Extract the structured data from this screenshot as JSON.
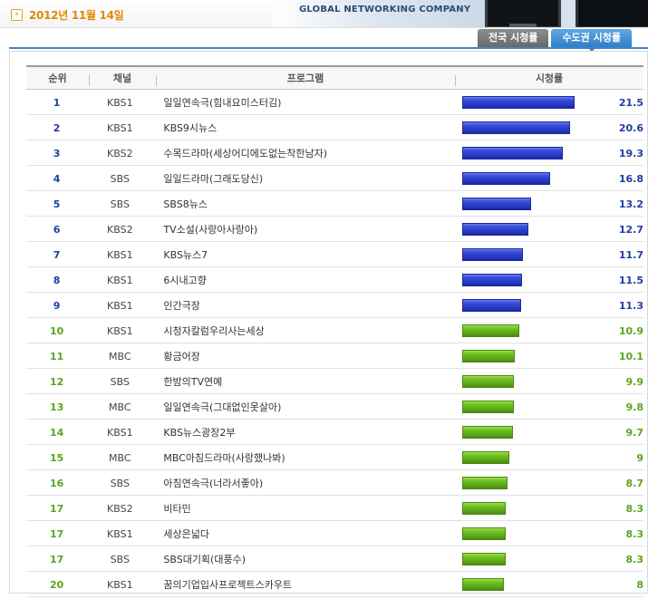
{
  "header": {
    "date": "2012년 11월 14일",
    "banner_text": "GLOBAL NETWORKING COMPANY"
  },
  "tabs": [
    {
      "label": "전국 시청률",
      "active": false
    },
    {
      "label": "수도권 시청률",
      "active": true
    }
  ],
  "table": {
    "columns": [
      "순위",
      "채널",
      "프로그램",
      "시청률"
    ],
    "max_rating": 21.5,
    "rows": [
      {
        "rank": "1",
        "channel": "KBS1",
        "program": "일일연속극(힘내요미스터김)",
        "rating": 21.5,
        "rating_label": "21.5",
        "tier": "top"
      },
      {
        "rank": "2",
        "channel": "KBS1",
        "program": "KBS9시뉴스",
        "rating": 20.6,
        "rating_label": "20.6",
        "tier": "top"
      },
      {
        "rank": "3",
        "channel": "KBS2",
        "program": "수목드라마(세상어디에도없는착한남자)",
        "rating": 19.3,
        "rating_label": "19.3",
        "tier": "top"
      },
      {
        "rank": "4",
        "channel": "SBS",
        "program": "일일드라마(그래도당신)",
        "rating": 16.8,
        "rating_label": "16.8",
        "tier": "top"
      },
      {
        "rank": "5",
        "channel": "SBS",
        "program": "SBS8뉴스",
        "rating": 13.2,
        "rating_label": "13.2",
        "tier": "top"
      },
      {
        "rank": "6",
        "channel": "KBS2",
        "program": "TV소설(사랑아사랑아)",
        "rating": 12.7,
        "rating_label": "12.7",
        "tier": "top"
      },
      {
        "rank": "7",
        "channel": "KBS1",
        "program": "KBS뉴스7",
        "rating": 11.7,
        "rating_label": "11.7",
        "tier": "top"
      },
      {
        "rank": "8",
        "channel": "KBS1",
        "program": "6시내고향",
        "rating": 11.5,
        "rating_label": "11.5",
        "tier": "top"
      },
      {
        "rank": "9",
        "channel": "KBS1",
        "program": "인간극장",
        "rating": 11.3,
        "rating_label": "11.3",
        "tier": "top"
      },
      {
        "rank": "10",
        "channel": "KBS1",
        "program": "시청자칼럼우리사는세상",
        "rating": 10.9,
        "rating_label": "10.9",
        "tier": "rest"
      },
      {
        "rank": "11",
        "channel": "MBC",
        "program": "황금어장",
        "rating": 10.1,
        "rating_label": "10.1",
        "tier": "rest"
      },
      {
        "rank": "12",
        "channel": "SBS",
        "program": "한밤의TV연예",
        "rating": 9.9,
        "rating_label": "9.9",
        "tier": "rest"
      },
      {
        "rank": "13",
        "channel": "MBC",
        "program": "일일연속극(그대없인못살아)",
        "rating": 9.8,
        "rating_label": "9.8",
        "tier": "rest"
      },
      {
        "rank": "14",
        "channel": "KBS1",
        "program": "KBS뉴스광장2부",
        "rating": 9.7,
        "rating_label": "9.7",
        "tier": "rest"
      },
      {
        "rank": "15",
        "channel": "MBC",
        "program": "MBC아침드라마(사랑했나봐)",
        "rating": 9.0,
        "rating_label": "9",
        "tier": "rest"
      },
      {
        "rank": "16",
        "channel": "SBS",
        "program": "아침연속극(너라서좋아)",
        "rating": 8.7,
        "rating_label": "8.7",
        "tier": "rest"
      },
      {
        "rank": "17",
        "channel": "KBS2",
        "program": "비타민",
        "rating": 8.3,
        "rating_label": "8.3",
        "tier": "rest"
      },
      {
        "rank": "17",
        "channel": "KBS1",
        "program": "세상은넓다",
        "rating": 8.3,
        "rating_label": "8.3",
        "tier": "rest"
      },
      {
        "rank": "17",
        "channel": "SBS",
        "program": "SBS대기획(대풍수)",
        "rating": 8.3,
        "rating_label": "8.3",
        "tier": "rest"
      },
      {
        "rank": "20",
        "channel": "KBS1",
        "program": "꿈의기업입사프로젝트스카우트",
        "rating": 8.0,
        "rating_label": "8",
        "tier": "rest"
      }
    ]
  },
  "colors": {
    "top_bar": "#2536c0",
    "rest_bar": "#6fc123",
    "top_text": "#1e3ea6",
    "rest_text": "#5aa61e",
    "date_text": "#e08a00",
    "active_tab": "#2f7fc8"
  }
}
